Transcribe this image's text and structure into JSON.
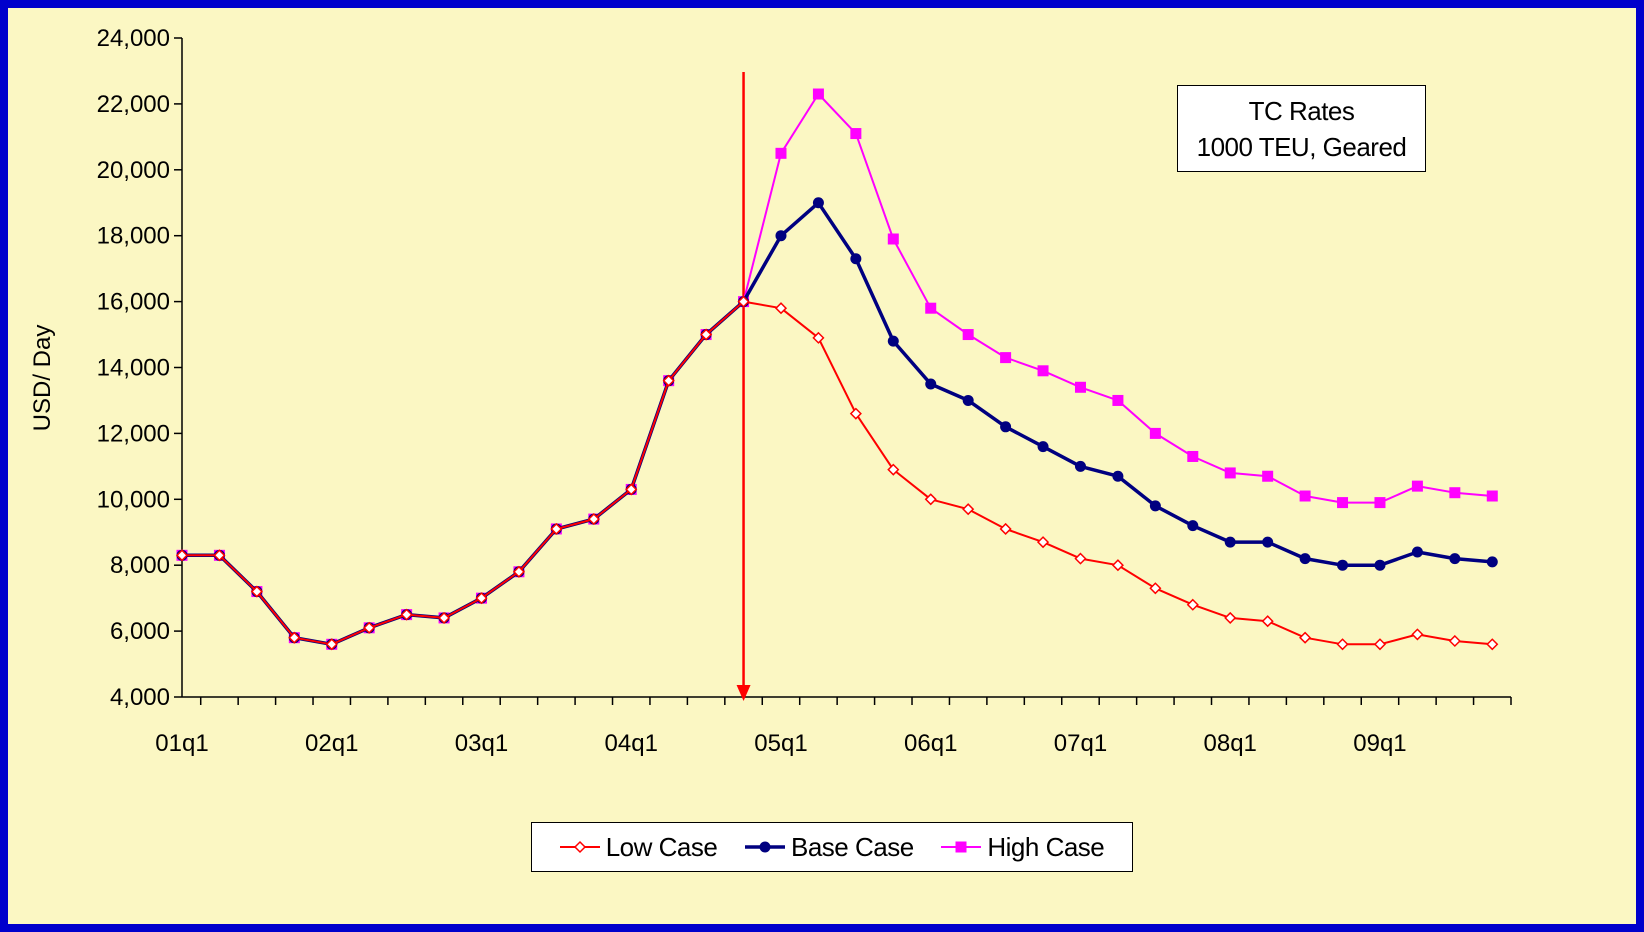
{
  "chart_data": {
    "type": "line",
    "title": "",
    "xlabel": "",
    "ylabel": "USD/ Day",
    "ylim": [
      4000,
      24000
    ],
    "ytick_step": 2000,
    "yticks": [
      "4,000",
      "6,000",
      "8,000",
      "10,000",
      "12,000",
      "14,000",
      "16,000",
      "18,000",
      "20,000",
      "22,000",
      "24,000"
    ],
    "x": [
      "01q1",
      "01q2",
      "01q3",
      "01q4",
      "02q1",
      "02q2",
      "02q3",
      "02q4",
      "03q1",
      "03q2",
      "03q3",
      "03q4",
      "04q1",
      "04q2",
      "04q3",
      "04q4",
      "05q1",
      "05q2",
      "05q3",
      "05q4",
      "06q1",
      "06q2",
      "06q3",
      "06q4",
      "07q1",
      "07q2",
      "07q3",
      "07q4",
      "08q1",
      "08q2",
      "08q3",
      "08q4",
      "09q1",
      "09q2",
      "09q3",
      "09q4"
    ],
    "xtick_labels": [
      "01q1",
      "02q1",
      "03q1",
      "04q1",
      "05q1",
      "06q1",
      "07q1",
      "08q1",
      "09q1"
    ],
    "series": [
      {
        "name": "Low Case",
        "color": "#ff0000",
        "marker": "diamond-open",
        "values": [
          8300,
          8300,
          7200,
          5800,
          5600,
          6100,
          6500,
          6400,
          7000,
          7800,
          9100,
          9400,
          10300,
          13600,
          15000,
          16000,
          15800,
          14900,
          12600,
          10900,
          10000,
          9700,
          9100,
          8700,
          8200,
          8000,
          7300,
          6800,
          6400,
          6300,
          5800,
          5600,
          5600,
          5900,
          5700,
          5600
        ]
      },
      {
        "name": "Base Case",
        "color": "#000080",
        "marker": "circle",
        "values": [
          8300,
          8300,
          7200,
          5800,
          5600,
          6100,
          6500,
          6400,
          7000,
          7800,
          9100,
          9400,
          10300,
          13600,
          15000,
          16000,
          18000,
          19000,
          17300,
          14800,
          13500,
          13000,
          12200,
          11600,
          11000,
          10700,
          9800,
          9200,
          8700,
          8700,
          8200,
          8000,
          8000,
          8400,
          8200,
          8100
        ]
      },
      {
        "name": "High Case",
        "color": "#ff00ff",
        "marker": "square",
        "values": [
          8300,
          8300,
          7200,
          5800,
          5600,
          6100,
          6500,
          6400,
          7000,
          7800,
          9100,
          9400,
          10300,
          13600,
          15000,
          16000,
          20500,
          22300,
          21100,
          17900,
          15800,
          15000,
          14300,
          13900,
          13400,
          13000,
          12000,
          11300,
          10800,
          10700,
          10100,
          9900,
          9900,
          10400,
          10200,
          10100
        ]
      }
    ],
    "annotation": {
      "type": "vertical-arrow",
      "x": "04q4",
      "color": "#ff0000"
    },
    "info_box": {
      "line1": "TC Rates",
      "line2": "1000 TEU, Geared"
    },
    "background_color": "#fbf7c3",
    "border_color": "#0000cc",
    "legend_position": "bottom-center",
    "grid": false
  }
}
